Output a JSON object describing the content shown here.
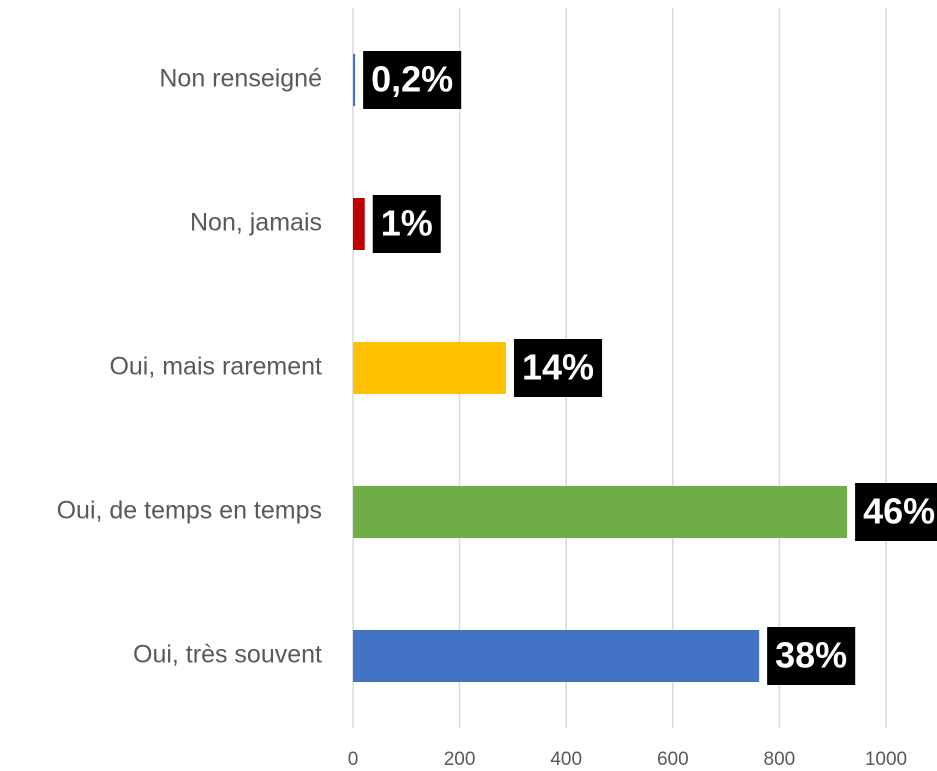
{
  "chart_data": {
    "type": "bar",
    "orientation": "horizontal",
    "categories": [
      "Non renseigné",
      "Non, jamais",
      "Oui, mais rarement",
      "Oui, de temps en temps",
      "Oui, très souvent"
    ],
    "values": [
      4,
      22,
      287,
      927,
      762
    ],
    "value_labels": [
      "0,2%",
      "1%",
      "14%",
      "46%",
      "38%"
    ],
    "colors": [
      "#4472c4",
      "#c00000",
      "#ffc000",
      "#70ad47",
      "#4472c4"
    ],
    "xlim": [
      0,
      1000
    ],
    "xticks": [
      0,
      200,
      400,
      600,
      800,
      1000
    ],
    "grid": true
  }
}
